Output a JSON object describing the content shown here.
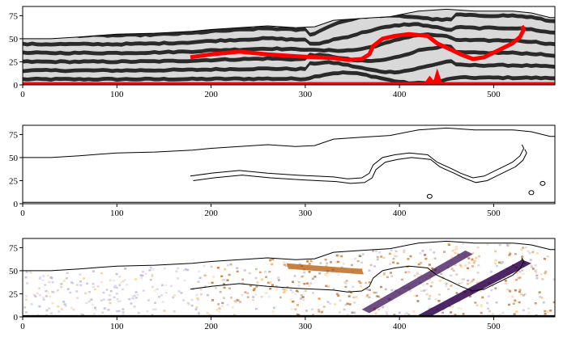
{
  "chart_data": [
    {
      "type": "image",
      "panel": "top",
      "description_of_content": "layered model: alternating light/dark grey bands with a red horizon and red bottom strip",
      "xlim": [
        0,
        565
      ],
      "ylim": [
        0,
        85
      ],
      "xticks": [
        0,
        100,
        200,
        300,
        400,
        500
      ],
      "yticks": [
        0,
        25,
        50,
        75
      ],
      "top_boundary": [
        [
          0,
          50
        ],
        [
          30,
          50
        ],
        [
          60,
          52
        ],
        [
          100,
          55
        ],
        [
          140,
          56
        ],
        [
          180,
          58
        ],
        [
          200,
          60
        ],
        [
          230,
          62
        ],
        [
          260,
          64
        ],
        [
          290,
          62
        ],
        [
          310,
          63
        ],
        [
          330,
          70
        ],
        [
          360,
          72
        ],
        [
          390,
          74
        ],
        [
          420,
          80
        ],
        [
          450,
          82
        ],
        [
          480,
          80
        ],
        [
          520,
          80
        ],
        [
          540,
          78
        ],
        [
          560,
          73
        ],
        [
          565,
          73
        ]
      ],
      "red_horizon": [
        [
          178,
          30
        ],
        [
          200,
          33
        ],
        [
          230,
          36
        ],
        [
          260,
          33
        ],
        [
          290,
          31
        ],
        [
          310,
          30
        ],
        [
          330,
          29
        ],
        [
          345,
          27
        ],
        [
          360,
          28
        ],
        [
          368,
          33
        ],
        [
          372,
          42
        ],
        [
          382,
          50
        ],
        [
          395,
          53
        ],
        [
          410,
          55
        ],
        [
          430,
          53
        ],
        [
          440,
          45
        ],
        [
          455,
          38
        ],
        [
          465,
          33
        ],
        [
          478,
          28
        ],
        [
          490,
          30
        ],
        [
          500,
          35
        ],
        [
          510,
          40
        ],
        [
          520,
          45
        ],
        [
          528,
          52
        ],
        [
          532,
          60
        ],
        [
          530,
          64
        ]
      ],
      "colors": {
        "light_band": "#d9d9d9",
        "dark_band": "#2a2a2a",
        "horizon": "#ff0000"
      }
    },
    {
      "type": "line",
      "panel": "middle",
      "description_of_content": "contour outlines of the top-panel model",
      "xlim": [
        0,
        565
      ],
      "ylim": [
        0,
        85
      ],
      "xticks": [
        0,
        100,
        200,
        300,
        400,
        500
      ],
      "yticks": [
        0,
        25,
        50,
        75
      ],
      "colors": {
        "line": "#000000"
      }
    },
    {
      "type": "heatmap",
      "panel": "bottom",
      "description_of_content": "diverging field (orange / white / purple) with contour overlay",
      "xlim": [
        0,
        565
      ],
      "ylim": [
        0,
        85
      ],
      "xticks": [
        0,
        100,
        200,
        300,
        400,
        500
      ],
      "yticks": [
        0,
        25,
        50,
        75
      ],
      "colors": {
        "positive": "#b35806",
        "neutral": "#f7f7f7",
        "negative": "#2d004b"
      }
    }
  ]
}
